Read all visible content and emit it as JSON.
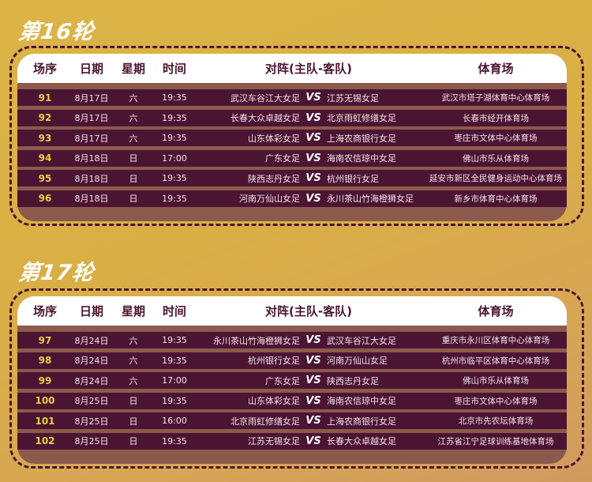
{
  "headers": {
    "no": "场序",
    "date": "日期",
    "weekday": "星期",
    "time": "时间",
    "match": "对阵(主队-客队)",
    "venue": "体育场"
  },
  "vs": "VS",
  "rounds": [
    {
      "title": "第16轮",
      "matches": [
        {
          "no": "91",
          "date": "8月17日",
          "weekday": "六",
          "time": "19:35",
          "home": "武汉车谷江大女足",
          "away": "江苏无锡女足",
          "venue": "武汉市塔子湖体育中心体育场"
        },
        {
          "no": "92",
          "date": "8月17日",
          "weekday": "六",
          "time": "19:35",
          "home": "长春大众卓越女足",
          "away": "北京雨虹修缮女足",
          "venue": "长春市经开体育场"
        },
        {
          "no": "93",
          "date": "8月17日",
          "weekday": "六",
          "time": "19:35",
          "home": "山东体彩女足",
          "away": "上海农商银行女足",
          "venue": "枣庄市文体中心体育场"
        },
        {
          "no": "94",
          "date": "8月18日",
          "weekday": "日",
          "time": "17:00",
          "home": "广东女足",
          "away": "海南农信琼中女足",
          "venue": "佛山市乐从体育场"
        },
        {
          "no": "95",
          "date": "8月18日",
          "weekday": "日",
          "time": "19:35",
          "home": "陕西志丹女足",
          "away": "杭州银行女足",
          "venue": "延安市新区全民健身运动中心体育场"
        },
        {
          "no": "96",
          "date": "8月18日",
          "weekday": "日",
          "time": "19:35",
          "home": "河南万仙山女足",
          "away": "永川茶山竹海橙狮女足",
          "venue": "新乡市体育中心体育场"
        }
      ]
    },
    {
      "title": "第17轮",
      "matches": [
        {
          "no": "97",
          "date": "8月24日",
          "weekday": "六",
          "time": "19:35",
          "home": "永川茶山竹海橙狮女足",
          "away": "武汉车谷江大女足",
          "venue": "重庆市永川区体育中心体育场"
        },
        {
          "no": "98",
          "date": "8月24日",
          "weekday": "六",
          "time": "19:35",
          "home": "杭州银行女足",
          "away": "河南万仙山女足",
          "venue": "杭州市临平区体育中心体育场"
        },
        {
          "no": "99",
          "date": "8月24日",
          "weekday": "六",
          "time": "17:00",
          "home": "广东女足",
          "away": "陕西志丹女足",
          "venue": "佛山市乐从体育场"
        },
        {
          "no": "100",
          "date": "8月25日",
          "weekday": "日",
          "time": "19:35",
          "home": "山东体彩女足",
          "away": "海南农信琼中女足",
          "venue": "枣庄市文体中心体育场"
        },
        {
          "no": "101",
          "date": "8月25日",
          "weekday": "日",
          "time": "16:00",
          "home": "北京雨虹修缮女足",
          "away": "上海农商银行女足",
          "venue": "北京市先农坛体育场"
        },
        {
          "no": "102",
          "date": "8月25日",
          "weekday": "日",
          "time": "19:35",
          "home": "江苏无锡女足",
          "away": "长春大众卓越女足",
          "venue": "江苏省江宁足球训练基地体育场"
        }
      ]
    }
  ],
  "colors": {
    "background": "#dcb446",
    "row": "#4c1433",
    "panel": "#8c5a4c",
    "header_text": "#4a1530",
    "match_no": "#e8d045"
  }
}
